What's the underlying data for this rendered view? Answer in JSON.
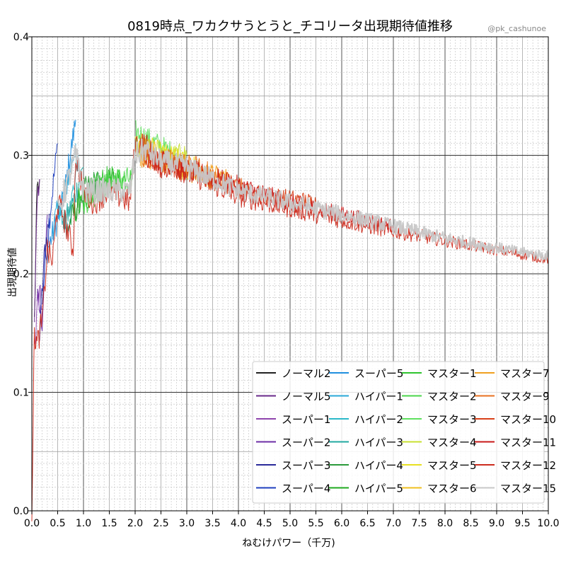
{
  "chart_data": {
    "type": "line",
    "title": "0819時点_ワカクサうとうと_チコリータ出現期待値推移",
    "watermark": "@pk_cashunoe",
    "xlabel": "ねむけパワー（千万)",
    "ylabel": "出現期待値",
    "xlim": [
      0,
      10
    ],
    "ylim": [
      0,
      0.4
    ],
    "x_ticks": [
      "0.0",
      "0.5",
      "1.0",
      "1.5",
      "2.0",
      "2.5",
      "3.0",
      "3.5",
      "4.0",
      "4.5",
      "5.0",
      "5.5",
      "6.0",
      "6.5",
      "7.0",
      "7.5",
      "8.0",
      "8.5",
      "9.0",
      "9.5",
      "10.0"
    ],
    "y_ticks": [
      "0.0",
      "0.1",
      "0.2",
      "0.3",
      "0.4"
    ],
    "grid": true,
    "legend_position": "lower-right",
    "legend_columns": 4,
    "series": [
      {
        "name": "ノーマル2",
        "color": "#222222",
        "points": [
          [
            0.05,
            0.16
          ],
          [
            0.1,
            0.27
          ],
          [
            0.15,
            0.28
          ]
        ]
      },
      {
        "name": "ノーマル5",
        "color": "#6a2a8a",
        "points": [
          [
            0.05,
            0.15
          ],
          [
            0.1,
            0.26
          ],
          [
            0.15,
            0.28
          ]
        ]
      },
      {
        "name": "スーパー1",
        "color": "#8e44ad",
        "points": [
          [
            0.05,
            0.14
          ],
          [
            0.15,
            0.19
          ],
          [
            0.2,
            0.17
          ]
        ]
      },
      {
        "name": "スーパー2",
        "color": "#6c2da6",
        "points": [
          [
            0.1,
            0.18
          ],
          [
            0.2,
            0.16
          ],
          [
            0.3,
            0.25
          ]
        ]
      },
      {
        "name": "スーパー3",
        "color": "#2a2a9a",
        "points": [
          [
            0.15,
            0.15
          ],
          [
            0.25,
            0.22
          ],
          [
            0.35,
            0.25
          ]
        ]
      },
      {
        "name": "スーパー4",
        "color": "#1f3fbf",
        "points": [
          [
            0.2,
            0.18
          ],
          [
            0.35,
            0.25
          ],
          [
            0.5,
            0.31
          ]
        ]
      },
      {
        "name": "スーパー5",
        "color": "#1f8fdf",
        "points": [
          [
            0.3,
            0.22
          ],
          [
            0.6,
            0.26
          ],
          [
            0.85,
            0.33
          ]
        ]
      },
      {
        "name": "ハイパー1",
        "color": "#2aa8d8",
        "points": [
          [
            0.4,
            0.24
          ],
          [
            0.65,
            0.27
          ],
          [
            0.85,
            0.31
          ]
        ]
      },
      {
        "name": "ハイパー2",
        "color": "#2ab8c8",
        "points": [
          [
            0.5,
            0.25
          ],
          [
            0.7,
            0.24
          ],
          [
            0.9,
            0.3
          ]
        ]
      },
      {
        "name": "ハイパー3",
        "color": "#20a8a0",
        "points": [
          [
            0.6,
            0.24
          ],
          [
            0.8,
            0.26
          ],
          [
            1.0,
            0.29
          ]
        ]
      },
      {
        "name": "ハイパー4",
        "color": "#2a9a3a",
        "points": [
          [
            0.7,
            0.24
          ],
          [
            1.0,
            0.27
          ],
          [
            1.3,
            0.28
          ]
        ]
      },
      {
        "name": "ハイパー5",
        "color": "#1faa1f",
        "points": [
          [
            0.8,
            0.25
          ],
          [
            1.2,
            0.27
          ],
          [
            1.6,
            0.28
          ]
        ]
      },
      {
        "name": "マスター1",
        "color": "#2ec42e",
        "points": [
          [
            0.9,
            0.26
          ],
          [
            1.4,
            0.28
          ],
          [
            1.95,
            0.28
          ]
        ]
      },
      {
        "name": "マスター2",
        "color": "#4ad64a",
        "points": [
          [
            1.0,
            0.26
          ],
          [
            1.6,
            0.28
          ],
          [
            1.95,
            0.28
          ]
        ]
      },
      {
        "name": "マスター3",
        "color": "#5ee05e",
        "points": [
          [
            2.0,
            0.32
          ],
          [
            2.4,
            0.31
          ],
          [
            2.8,
            0.3
          ]
        ]
      },
      {
        "name": "マスター4",
        "color": "#c8e030",
        "points": [
          [
            2.0,
            0.31
          ],
          [
            2.5,
            0.3
          ],
          [
            3.0,
            0.3
          ]
        ]
      },
      {
        "name": "マスター5",
        "color": "#e8e020",
        "points": [
          [
            2.05,
            0.31
          ],
          [
            2.6,
            0.3
          ],
          [
            3.2,
            0.29
          ]
        ]
      },
      {
        "name": "マスター6",
        "color": "#f0c020",
        "points": [
          [
            2.1,
            0.31
          ],
          [
            2.8,
            0.29
          ],
          [
            3.5,
            0.28
          ]
        ]
      },
      {
        "name": "マスター7",
        "color": "#f0a020",
        "points": [
          [
            2.1,
            0.3
          ],
          [
            3.0,
            0.29
          ],
          [
            3.8,
            0.28
          ]
        ]
      },
      {
        "name": "マスター9",
        "color": "#e87020",
        "points": [
          [
            2.15,
            0.3
          ],
          [
            3.2,
            0.29
          ],
          [
            4.2,
            0.27
          ]
        ]
      },
      {
        "name": "マスター10",
        "color": "#d84018",
        "points": [
          [
            2.2,
            0.3
          ],
          [
            4.0,
            0.27
          ],
          [
            5.5,
            0.26
          ]
        ]
      },
      {
        "name": "マスター11",
        "color": "#c81818",
        "points": [
          [
            2.2,
            0.3
          ],
          [
            5.0,
            0.26
          ],
          [
            7.0,
            0.24
          ]
        ]
      },
      {
        "name": "マスター12",
        "color": "#cc2b1e",
        "points": [
          [
            0.0,
            0.0
          ],
          [
            0.05,
            0.15
          ],
          [
            0.1,
            0.14
          ],
          [
            0.2,
            0.16
          ],
          [
            0.3,
            0.22
          ],
          [
            0.4,
            0.21
          ],
          [
            0.5,
            0.26
          ],
          [
            0.6,
            0.25
          ],
          [
            0.8,
            0.22
          ],
          [
            0.85,
            0.3
          ],
          [
            1.0,
            0.27
          ],
          [
            1.2,
            0.26
          ],
          [
            1.5,
            0.27
          ],
          [
            1.9,
            0.26
          ],
          [
            2.0,
            0.31
          ],
          [
            2.2,
            0.31
          ],
          [
            2.5,
            0.29
          ],
          [
            2.75,
            0.29
          ],
          [
            3.0,
            0.285
          ],
          [
            3.5,
            0.275
          ],
          [
            4.0,
            0.265
          ],
          [
            4.5,
            0.26
          ],
          [
            5.0,
            0.255
          ],
          [
            5.5,
            0.25
          ],
          [
            6.0,
            0.245
          ],
          [
            6.5,
            0.24
          ],
          [
            7.0,
            0.236
          ],
          [
            7.5,
            0.232
          ],
          [
            8.0,
            0.228
          ],
          [
            8.5,
            0.224
          ],
          [
            9.0,
            0.22
          ],
          [
            9.5,
            0.216
          ],
          [
            10.0,
            0.212
          ]
        ]
      },
      {
        "name": "マスター15",
        "color": "#c8c8c8",
        "points": [
          [
            0.5,
            0.25
          ],
          [
            0.85,
            0.3
          ],
          [
            1.0,
            0.27
          ],
          [
            1.5,
            0.27
          ],
          [
            1.9,
            0.27
          ],
          [
            2.0,
            0.3
          ],
          [
            2.2,
            0.305
          ],
          [
            2.5,
            0.295
          ],
          [
            3.0,
            0.29
          ],
          [
            3.5,
            0.28
          ],
          [
            4.0,
            0.27
          ],
          [
            4.5,
            0.265
          ],
          [
            5.0,
            0.26
          ],
          [
            5.5,
            0.255
          ],
          [
            6.0,
            0.25
          ],
          [
            6.5,
            0.245
          ],
          [
            7.0,
            0.24
          ],
          [
            7.5,
            0.235
          ],
          [
            8.0,
            0.23
          ],
          [
            8.5,
            0.226
          ],
          [
            9.0,
            0.222
          ],
          [
            9.5,
            0.218
          ],
          [
            10.0,
            0.215
          ]
        ]
      }
    ]
  }
}
